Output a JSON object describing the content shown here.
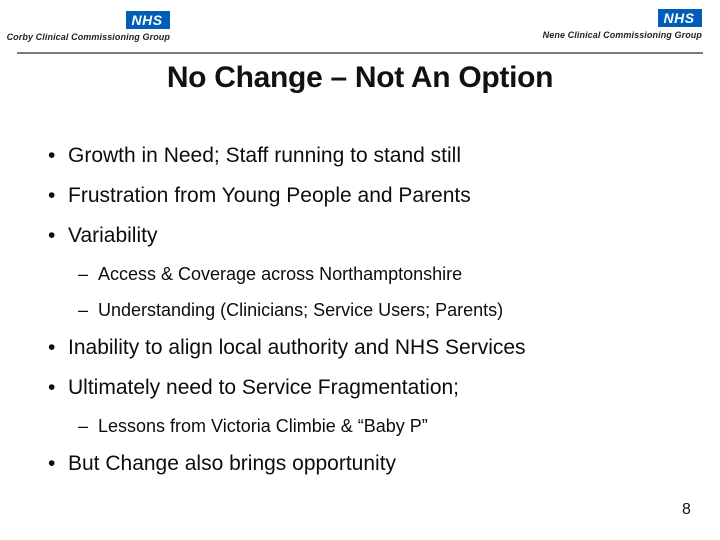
{
  "header": {
    "nhs_logo_text": "NHS",
    "left_org": "Corby Clinical Commissioning Group",
    "right_org": "Nene Clinical Commissioning Group",
    "colors": {
      "nhs_blue": "#005EB8",
      "divider_gray": "#7a7a7a"
    }
  },
  "slide": {
    "title": "No Change – Not An Option",
    "bullet_marker": "•",
    "sub_bullet_marker": "–",
    "bullets": [
      {
        "level": 1,
        "text": "Growth in Need; Staff running to stand still"
      },
      {
        "level": 1,
        "text": "Frustration from Young People and Parents"
      },
      {
        "level": 1,
        "text": "Variability"
      },
      {
        "level": 2,
        "text": "Access & Coverage across Northamptonshire"
      },
      {
        "level": 2,
        "text": "Understanding (Clinicians; Service Users; Parents)"
      },
      {
        "level": 1,
        "text": "Inability to align local authority and NHS Services"
      },
      {
        "level": 1,
        "text": "Ultimately need to Service Fragmentation;"
      },
      {
        "level": 2,
        "text": "Lessons from Victoria Climbie & “Baby P”"
      },
      {
        "level": 1,
        "text": "But Change also brings opportunity"
      }
    ],
    "page_number": "8"
  }
}
